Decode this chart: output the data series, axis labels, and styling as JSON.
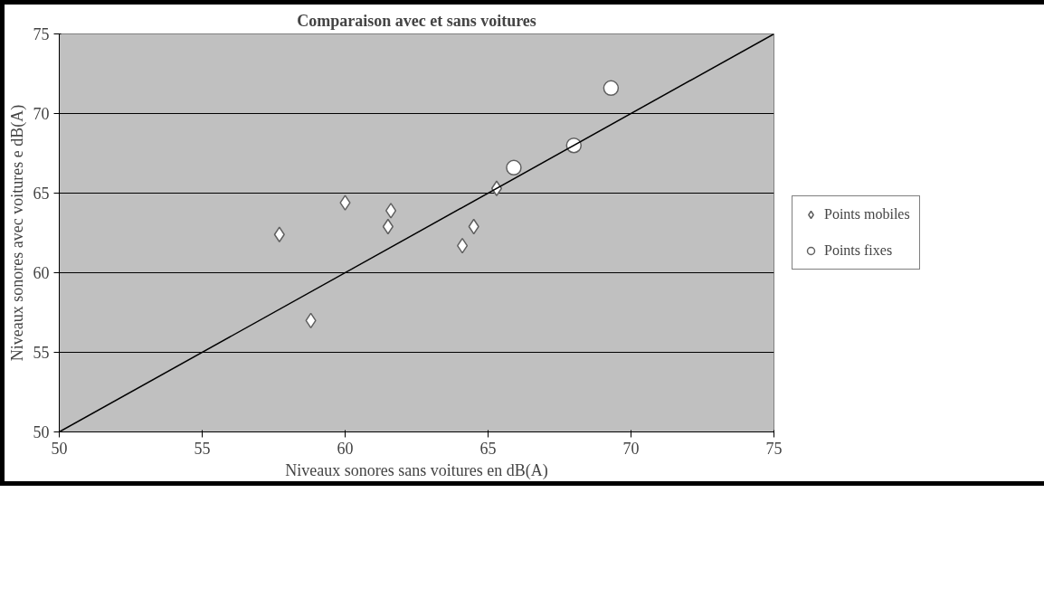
{
  "chart_data": {
    "type": "scatter",
    "title": "Comparaison avec et sans voitures",
    "xlabel": "Niveaux sonores sans voitures en dB(A)",
    "ylabel": "Niveaux sonores avec voitures e dB(A)",
    "xlim": [
      50,
      75
    ],
    "xticks": [
      50,
      55,
      60,
      65,
      70,
      75
    ],
    "ylim": [
      50,
      75
    ],
    "yticks": [
      50,
      55,
      60,
      65,
      70,
      75
    ],
    "grid": "y",
    "legend": "right",
    "series": [
      {
        "name": "Points mobiles",
        "marker": "diamond",
        "color": "#ffffff",
        "x": [
          57.7,
          58.8,
          60.0,
          61.5,
          61.6,
          64.1,
          64.5,
          65.3
        ],
        "values": [
          62.4,
          57.0,
          64.4,
          62.9,
          63.9,
          61.7,
          62.9,
          65.3
        ]
      },
      {
        "name": "Points fixes",
        "marker": "circle",
        "color": "#ffffff",
        "x": [
          65.9,
          68.0,
          69.3
        ],
        "values": [
          66.6,
          68.0,
          71.6
        ]
      },
      {
        "type": "line",
        "color": "#000000",
        "x": [
          50,
          75
        ],
        "values": [
          50,
          75
        ]
      }
    ]
  }
}
